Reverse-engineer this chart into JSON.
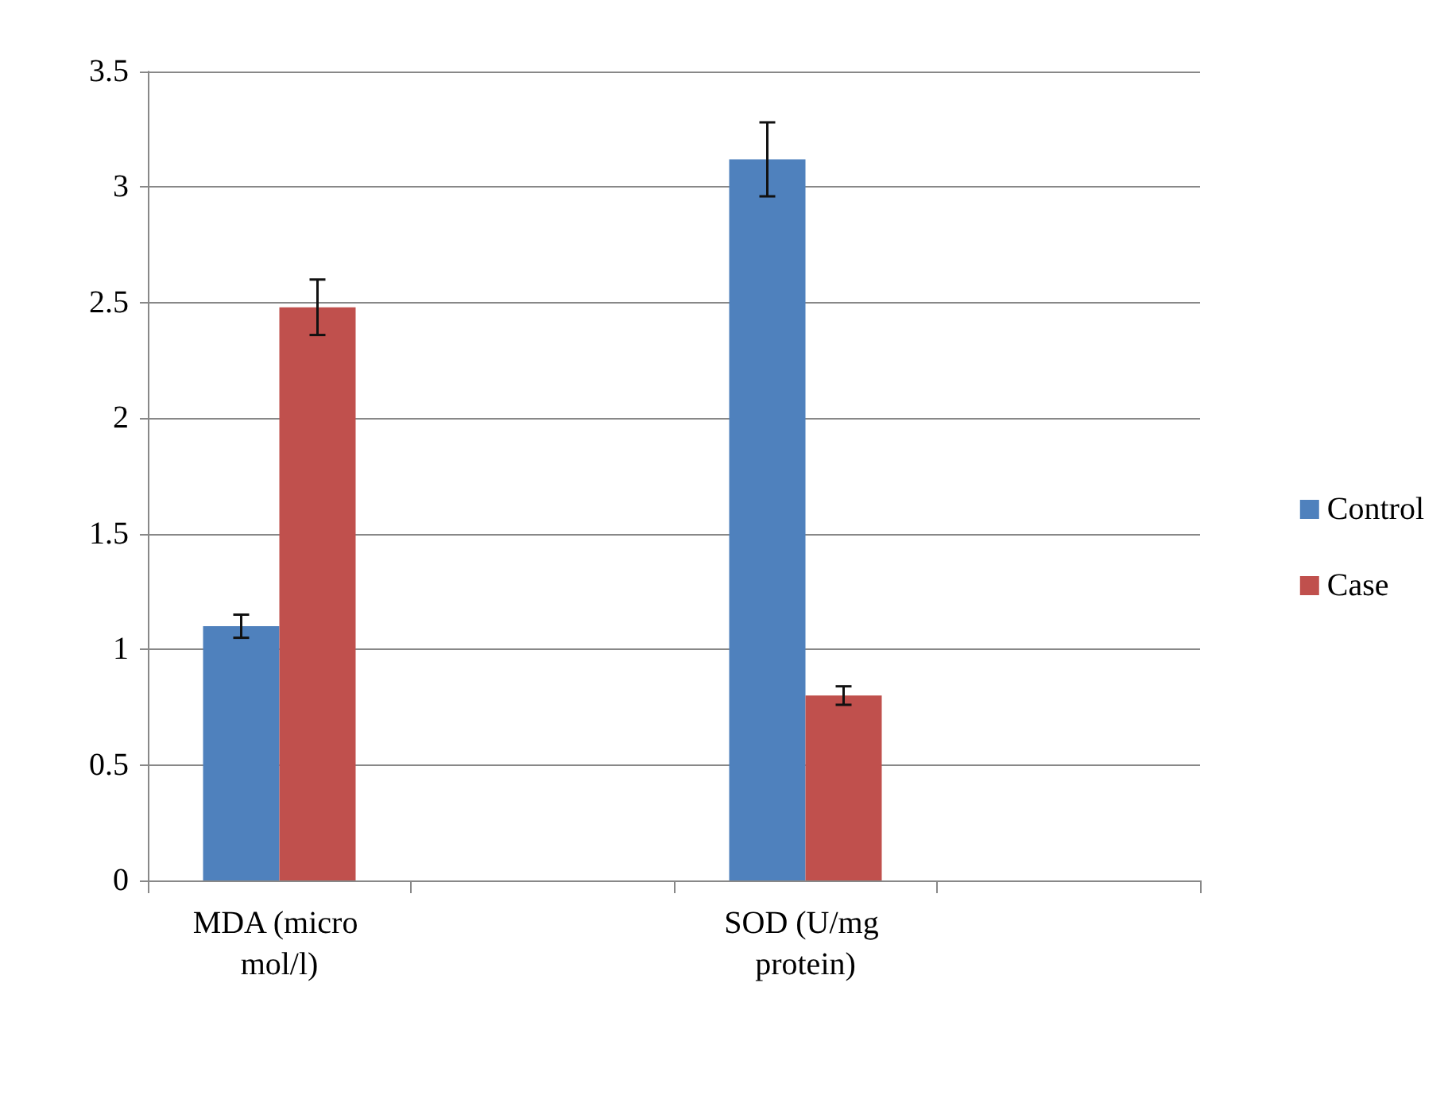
{
  "chart_data": {
    "type": "bar",
    "categories": [
      "MDA (micro mol/l)",
      null,
      "SOD (U/mg protein)",
      null
    ],
    "series": [
      {
        "name": "Control",
        "color": "#4f81bd",
        "values": [
          1.1,
          null,
          3.12,
          null
        ],
        "errors": [
          0.05,
          null,
          0.16,
          null
        ]
      },
      {
        "name": "Case",
        "color": "#c0504d",
        "values": [
          2.48,
          null,
          0.8,
          null
        ],
        "errors": [
          0.12,
          null,
          0.04,
          null
        ]
      }
    ],
    "ylim": [
      0,
      3.5
    ],
    "yticks": [
      0,
      0.5,
      1,
      1.5,
      2,
      2.5,
      3,
      3.5
    ],
    "grid": "y",
    "legend": "right"
  }
}
